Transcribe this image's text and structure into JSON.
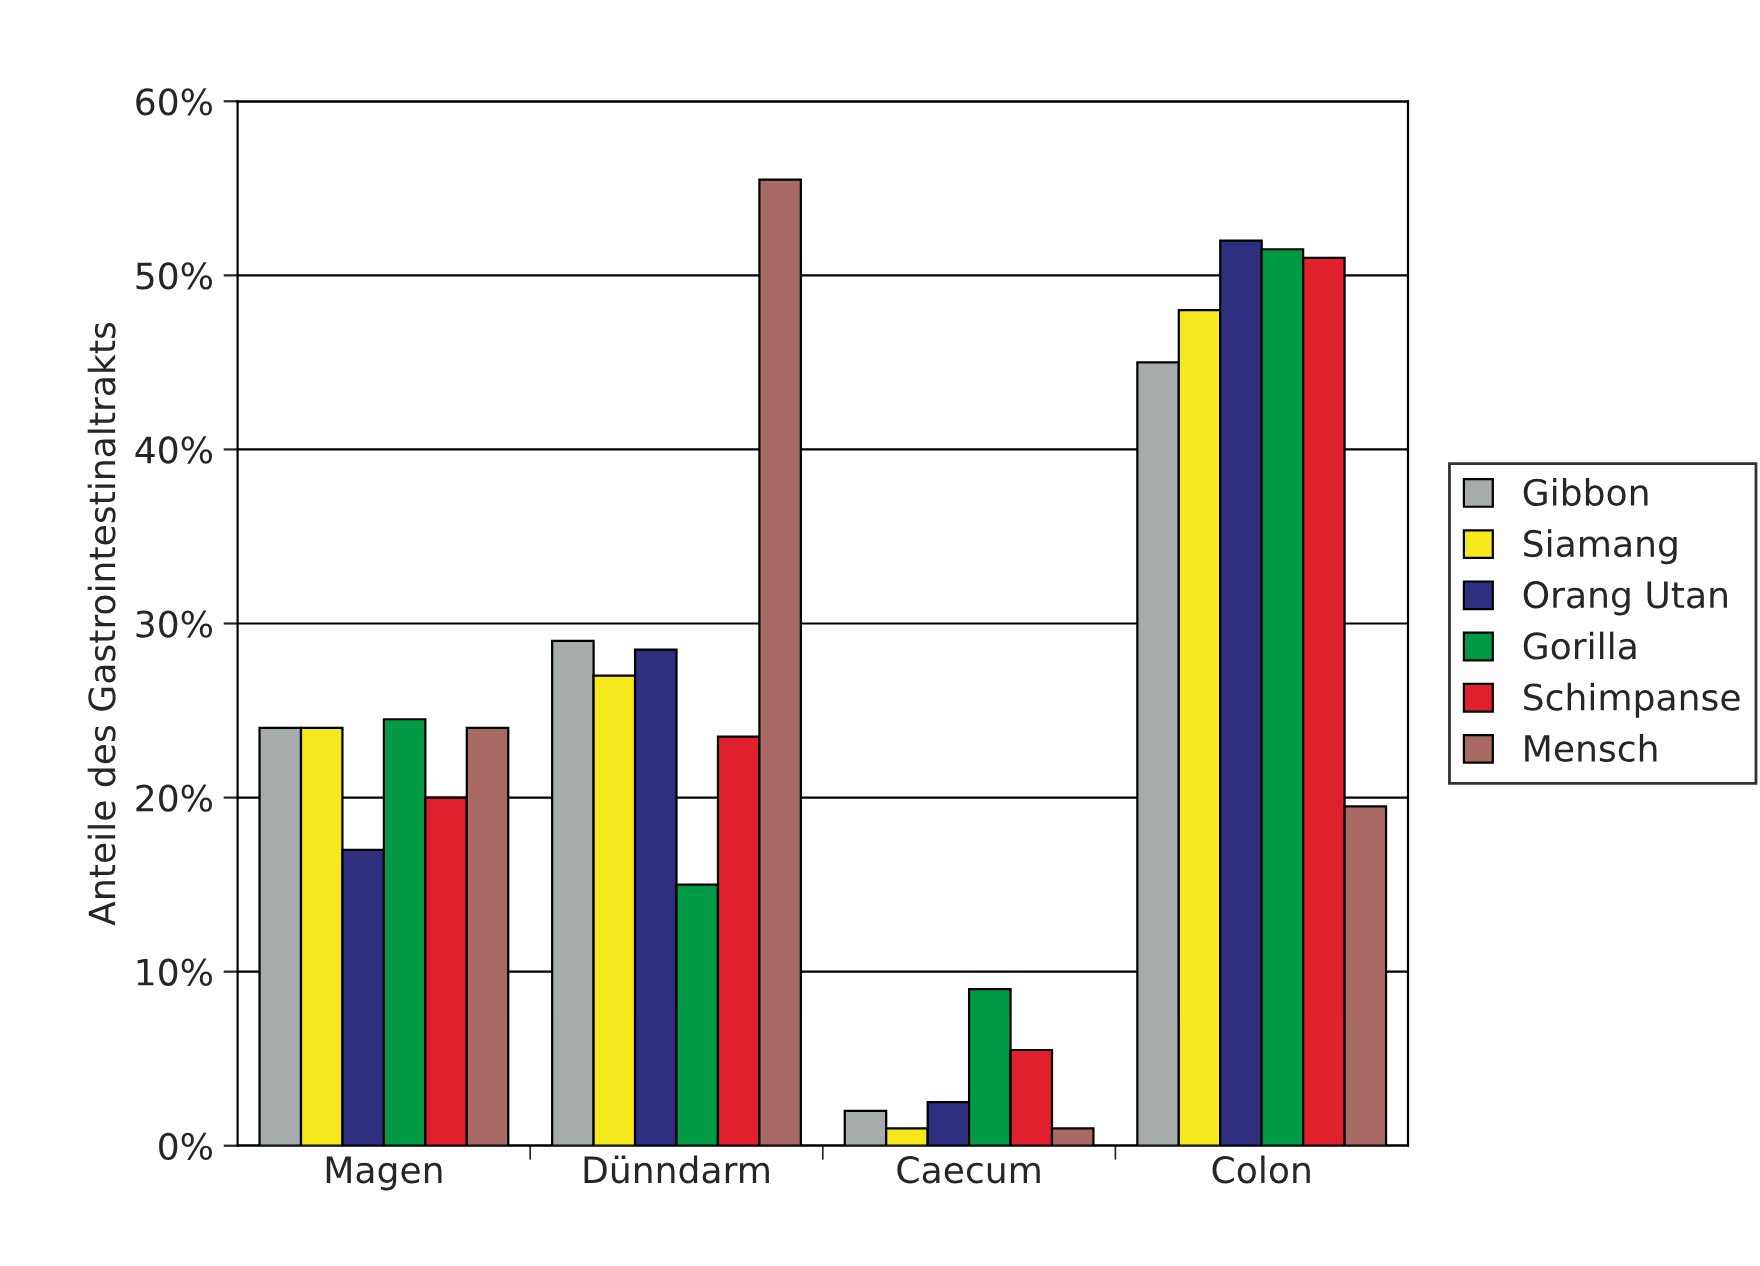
{
  "chart_data": {
    "type": "bar",
    "ylabel": "Anteile des Gastrointestinaltrakts",
    "categories": [
      "Magen",
      "Dünndarm",
      "Caecum",
      "Colon"
    ],
    "series": [
      {
        "name": "Gibbon",
        "color": "#a6acac",
        "values": [
          24,
          29,
          2,
          45
        ]
      },
      {
        "name": "Siamang",
        "color": "#f5e91e",
        "values": [
          24,
          27,
          1,
          48
        ]
      },
      {
        "name": "Orang Utan",
        "color": "#2e2f7f",
        "values": [
          17,
          28.5,
          2.5,
          52
        ]
      },
      {
        "name": "Gorilla",
        "color": "#009a45",
        "values": [
          24.5,
          15,
          9,
          51.5
        ]
      },
      {
        "name": "Schimpanse",
        "color": "#e0202c",
        "values": [
          20,
          23.5,
          5.5,
          51
        ]
      },
      {
        "name": "Mensch",
        "color": "#a86b63",
        "values": [
          24,
          55.5,
          1,
          19.5
        ]
      }
    ],
    "ylim": [
      0,
      60
    ],
    "yticks": [
      {
        "value": 0,
        "label": "0%"
      },
      {
        "value": 10,
        "label": "10%"
      },
      {
        "value": 20,
        "label": "20%"
      },
      {
        "value": 30,
        "label": "30%"
      },
      {
        "value": 40,
        "label": "40%"
      },
      {
        "value": 50,
        "label": "50%"
      },
      {
        "value": 60,
        "label": "60%"
      }
    ],
    "grid": "y",
    "legend": "right"
  }
}
